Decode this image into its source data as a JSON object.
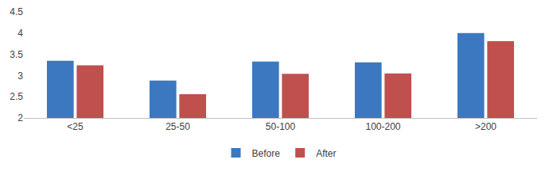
{
  "chart_data": {
    "type": "bar",
    "categories": [
      "<25",
      "25-50",
      "50-100",
      "100-200",
      ">200"
    ],
    "series": [
      {
        "name": "Before",
        "color": "#3c78c0",
        "values": [
          3.35,
          2.88,
          3.33,
          3.31,
          4.0
        ]
      },
      {
        "name": "After",
        "color": "#c0504d",
        "values": [
          3.24,
          2.56,
          3.04,
          3.05,
          3.81
        ]
      }
    ],
    "ylim": [
      2,
      4.5
    ],
    "yticks": [
      2,
      2.5,
      3,
      3.5,
      4,
      4.5
    ],
    "grid": false,
    "legend": "bottom"
  }
}
